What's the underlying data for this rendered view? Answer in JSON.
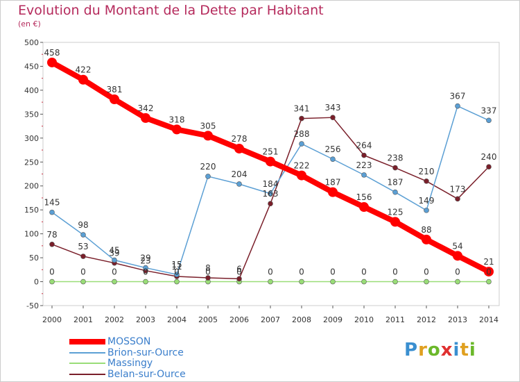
{
  "header": {
    "title": "Evolution du Montant de la Dette par Habitant",
    "subtitle": "(en €)"
  },
  "logo": {
    "text": "Proxiti",
    "letters": [
      {
        "ch": "P",
        "color": "#3a8fd0"
      },
      {
        "ch": "r",
        "color": "#e0a020"
      },
      {
        "ch": "o",
        "color": "#6bb82a"
      },
      {
        "ch": "x",
        "color": "#e03030"
      },
      {
        "ch": "i",
        "color": "#3a8fd0"
      },
      {
        "ch": "t",
        "color": "#e0a020"
      },
      {
        "ch": "i",
        "color": "#6bb82a"
      }
    ]
  },
  "chart_data": {
    "type": "line",
    "title": "Evolution du Montant de la Dette par Habitant",
    "subtitle": "(en €)",
    "x": [
      "2000",
      "2001",
      "2002",
      "2003",
      "2004",
      "2005",
      "2006",
      "2007",
      "2008",
      "2009",
      "2010",
      "2011",
      "2012",
      "2013",
      "2014"
    ],
    "ylim": [
      -50,
      500
    ],
    "yticks": [
      "-50",
      "0",
      "50",
      "100",
      "150",
      "200",
      "250",
      "300",
      "350",
      "400",
      "450",
      "500"
    ],
    "grid": false,
    "legend_position": "bottom-left",
    "series": [
      {
        "name": "MOSSON",
        "color": "#ff0000",
        "emphasis": true,
        "values": [
          458,
          422,
          381,
          342,
          318,
          305,
          278,
          251,
          222,
          187,
          156,
          125,
          88,
          54,
          21
        ],
        "labels": [
          "458",
          "422",
          "381",
          "342",
          "318",
          "305",
          "278",
          "251",
          "222",
          "187",
          "156",
          "125",
          "88",
          "54",
          "21"
        ]
      },
      {
        "name": "Brion-sur-Ource",
        "color": "#5b9fd4",
        "values": [
          145,
          98,
          45,
          29,
          15,
          220,
          204,
          184,
          288,
          256,
          223,
          187,
          149,
          367,
          337
        ],
        "labels": [
          "145",
          "98",
          "45",
          "29",
          "15",
          "220",
          "204",
          "184",
          "288",
          "256",
          "223",
          "187",
          "149",
          "367",
          "337"
        ]
      },
      {
        "name": "Massingy",
        "color": "#99dd77",
        "values": [
          0,
          0,
          0,
          0,
          0,
          0,
          0,
          0,
          0,
          0,
          0,
          0,
          0,
          0,
          0
        ],
        "labels": [
          "0",
          "0",
          "0",
          "0",
          "0",
          "0",
          "0",
          "0",
          "0",
          "0",
          "0",
          "0",
          "0",
          "0",
          "0"
        ]
      },
      {
        "name": "Belan-sur-Ource",
        "color": "#7a1f2a",
        "values": [
          78,
          53,
          39,
          23,
          11,
          8,
          6,
          163,
          341,
          343,
          264,
          238,
          210,
          173,
          240
        ],
        "labels": [
          "78",
          "53",
          "39",
          "23",
          "11",
          "8",
          "6",
          "163",
          "341",
          "343",
          "264",
          "238",
          "210",
          "173",
          "240"
        ]
      }
    ]
  }
}
